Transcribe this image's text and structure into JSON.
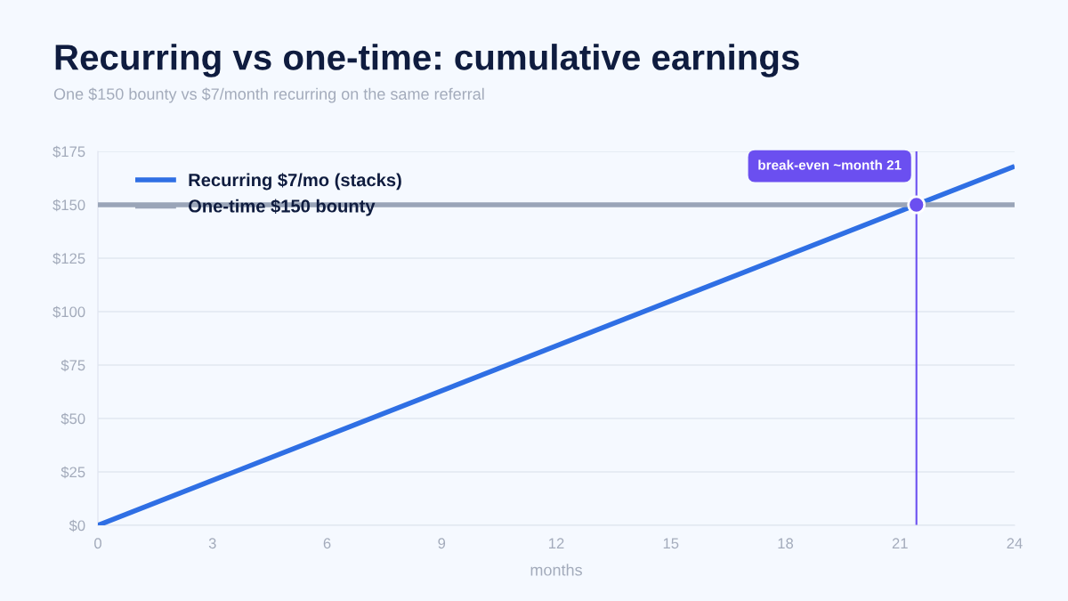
{
  "chart_data": {
    "type": "line",
    "title": "Recurring vs one-time: cumulative earnings",
    "subtitle": "One $150 bounty vs $7/month recurring on the same referral",
    "xlabel": "months",
    "x": [
      0,
      24
    ],
    "series": [
      {
        "name": "Recurring $7/mo (stacks)",
        "color": "#2f6fe4",
        "values": [
          0,
          168
        ]
      },
      {
        "name": "One-time $150 bounty",
        "color": "#9aa5b8",
        "values": [
          150,
          150
        ]
      },
      {
        "type": "scatter",
        "color": "#6b4ff0",
        "marker": "circle",
        "x": [
          21.43
        ],
        "values": [
          150
        ]
      }
    ],
    "ref_lines": [
      {
        "axis": "x",
        "value": 21.43,
        "label": "break-even ~month 21",
        "color": "#6b4ff0"
      }
    ],
    "xlim": [
      0,
      24
    ],
    "xticks": [
      0,
      3,
      6,
      9,
      12,
      15,
      18,
      21,
      24
    ],
    "ylim": [
      0,
      175
    ],
    "yticks": [
      {
        "value": 0,
        "label": "$0"
      },
      {
        "value": 25,
        "label": "$25"
      },
      {
        "value": 50,
        "label": "$50"
      },
      {
        "value": 75,
        "label": "$75"
      },
      {
        "value": 100,
        "label": "$100"
      },
      {
        "value": 125,
        "label": "$125"
      },
      {
        "value": 150,
        "label": "$150"
      },
      {
        "value": 175,
        "label": "$175"
      }
    ],
    "grid": "y",
    "legend": "top left"
  }
}
